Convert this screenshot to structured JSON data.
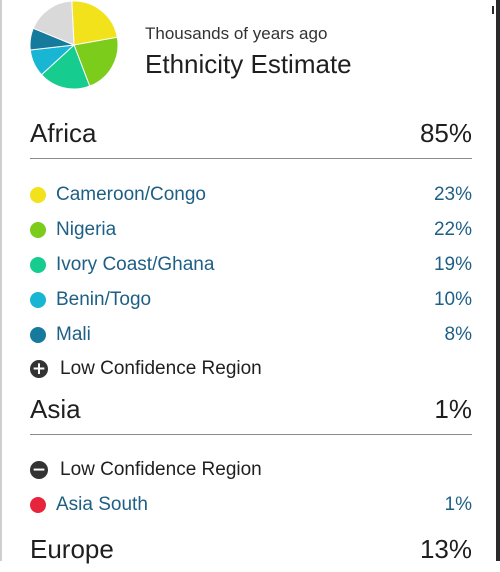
{
  "header": {
    "subtitle": "Thousands of years ago",
    "title": "Ethnicity Estimate"
  },
  "pie_colors": [
    "#f2e21b",
    "#7ccc1c",
    "#16cc8e",
    "#19b6d3",
    "#167a9c",
    "#d9d9d9"
  ],
  "regions": [
    {
      "name": "Africa",
      "percent": "85%",
      "items": [
        {
          "label": "Cameroon/Congo",
          "percent": "23%",
          "color": "#f2e21b"
        },
        {
          "label": "Nigeria",
          "percent": "22%",
          "color": "#7ccc1c"
        },
        {
          "label": "Ivory Coast/Ghana",
          "percent": "19%",
          "color": "#16cc8e"
        },
        {
          "label": "Benin/Togo",
          "percent": "10%",
          "color": "#19b6d3"
        },
        {
          "label": "Mali",
          "percent": "8%",
          "color": "#167a9c"
        }
      ],
      "low_confidence": {
        "label": "Low Confidence Region",
        "icon": "plus-circle-icon"
      }
    },
    {
      "name": "Asia",
      "percent": "1%",
      "low_confidence": {
        "label": "Low Confidence Region",
        "icon": "minus-circle-icon"
      },
      "items": [
        {
          "label": "Asia South",
          "percent": "1%",
          "color": "#e8243c"
        }
      ]
    },
    {
      "name": "Europe",
      "percent": "13%"
    }
  ]
}
